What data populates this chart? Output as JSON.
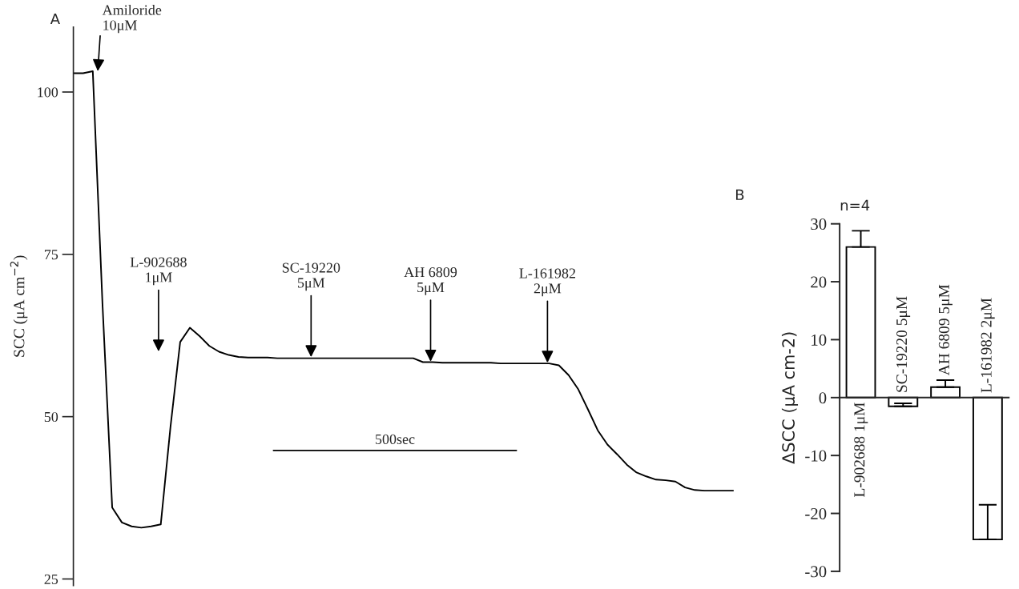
{
  "chart_data": [
    {
      "type": "line",
      "ylabel": "SCC (μA cm$^{−2}$)",
      "ylim": [
        24,
        110
      ],
      "yticks": [
        25,
        50,
        75,
        100
      ],
      "tick_labels": "y",
      "categories": [
        null,
        null,
        null,
        null,
        null,
        null,
        null,
        null,
        null,
        null,
        null,
        null,
        null,
        null,
        null,
        null,
        null,
        null,
        null,
        null,
        null,
        null,
        null,
        null,
        null,
        null,
        null,
        null,
        null,
        null,
        null,
        null,
        null,
        null,
        null,
        null,
        null,
        null,
        null,
        null,
        null,
        null,
        null,
        null,
        null,
        null,
        null,
        null,
        null,
        null,
        null,
        null,
        null,
        null,
        null,
        null,
        null,
        null,
        null,
        null,
        null,
        null,
        null,
        null,
        null,
        null,
        null,
        null,
        null
      ],
      "series": [
        {
          "color": "#000000",
          "values": [
            102.9,
            102.9,
            103.2,
            67.3,
            36.0,
            33.7,
            33.1,
            32.9,
            33.1,
            33.4,
            48.4,
            61.5,
            63.7,
            62.4,
            60.9,
            60.0,
            59.5,
            59.2,
            59.1,
            59.1,
            59.1,
            59.0,
            59.0,
            59.0,
            59.0,
            59.0,
            59.0,
            59.0,
            59.0,
            59.0,
            59.0,
            59.0,
            59.0,
            59.0,
            59.0,
            59.0,
            58.4,
            58.4,
            58.3,
            58.3,
            58.3,
            58.3,
            58.3,
            58.3,
            58.2,
            58.2,
            58.2,
            58.2,
            58.2,
            58.2,
            57.9,
            56.4,
            54.2,
            51.1,
            47.9,
            45.7,
            44.2,
            42.6,
            41.4,
            40.8,
            40.3,
            40.2,
            40.0,
            39.1,
            38.7,
            38.6,
            38.6,
            38.6,
            38.6
          ]
        }
      ],
      "ref_lines": [
        {
          "axis": "y",
          "value": 44.8,
          "label": "500sec",
          "color": "#000000"
        }
      ],
      "annotations": [
        "A",
        "Amiloride\n10μM",
        "L-902688\n1μM",
        "SC-19220\n5μM",
        "AH 6809\n5μM",
        "L-161982\n2μM"
      ]
    },
    {
      "type": "bar",
      "title": "n=4",
      "ylabel": "ΔSCC (μA cm-2)",
      "categories": [
        "L-902688 1μM",
        "SC-19220 5μM",
        "AH 6809 5μM",
        "L-161982 2μM"
      ],
      "values": [
        26.0,
        -1.5,
        1.8,
        -24.5
      ],
      "errors": [
        [
          26.0,
          28.8
        ],
        [
          -1.5,
          -1.0
        ],
        [
          1.8,
          3.0
        ],
        [
          -24.5,
          -18.5
        ]
      ],
      "color": "#ffffff",
      "ylim": [
        -30,
        30
      ],
      "yticks": [
        -30,
        -20,
        -10,
        0,
        10,
        20,
        30
      ],
      "annotations": [
        "B"
      ]
    }
  ]
}
